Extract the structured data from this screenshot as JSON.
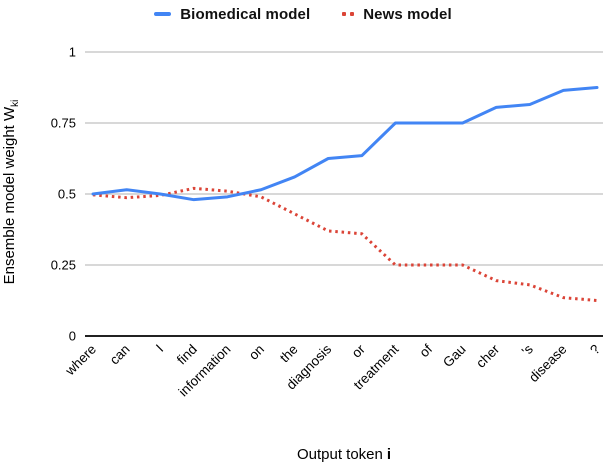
{
  "legend": {
    "items": [
      {
        "label": "Biomedical model",
        "color": "#4285F4",
        "marker": "dash"
      },
      {
        "label": "News model",
        "color": "#DB4437",
        "marker": "dots"
      }
    ]
  },
  "yaxis": {
    "title": "Ensemble model weight W",
    "title_sub": "ki"
  },
  "xaxis": {
    "title": "Output token",
    "title_var": "i"
  },
  "colors": {
    "grid": "#cccccc",
    "axis": "#212121",
    "text": "#000000"
  },
  "chart_data": {
    "type": "line",
    "title": "",
    "xlabel": "Output token i",
    "ylabel": "Ensemble model weight Wki",
    "x": [
      "where",
      "can",
      "I",
      "find",
      "information",
      "on",
      "the",
      "diagnosis",
      "or",
      "treatment",
      "of",
      "Gau",
      "cher",
      "'s",
      "disease",
      "?"
    ],
    "series": [
      {
        "name": "Biomedical model",
        "color": "#4285F4",
        "style": "solid",
        "values": [
          0.5,
          0.515,
          0.5,
          0.48,
          0.49,
          0.515,
          0.56,
          0.625,
          0.635,
          0.75,
          0.75,
          0.75,
          0.805,
          0.815,
          0.865,
          0.875
        ]
      },
      {
        "name": "News model",
        "color": "#DB4437",
        "style": "dotted",
        "values": [
          0.497,
          0.487,
          0.495,
          0.52,
          0.51,
          0.49,
          0.43,
          0.37,
          0.36,
          0.25,
          0.25,
          0.25,
          0.195,
          0.18,
          0.135,
          0.125
        ]
      }
    ],
    "ylim": [
      0,
      1
    ],
    "yticks": [
      0,
      0.25,
      0.5,
      0.75,
      1
    ],
    "grid": true,
    "legend_position": "top"
  }
}
